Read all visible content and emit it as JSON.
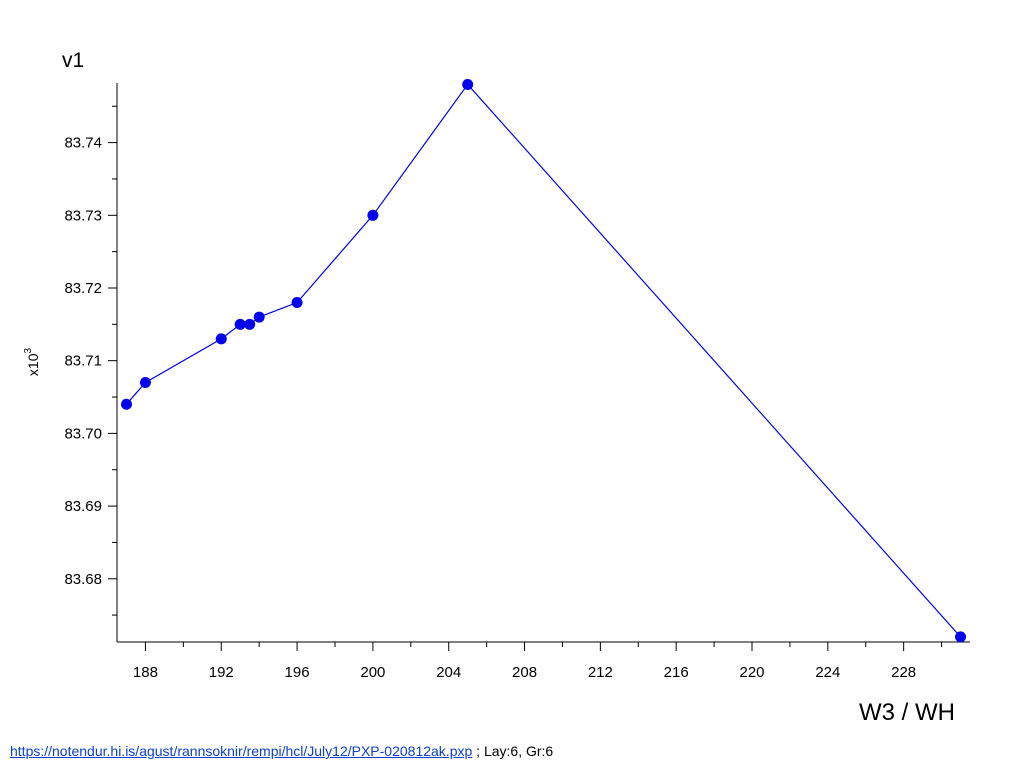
{
  "chart_data": {
    "type": "line",
    "title": "v1",
    "xlabel": "W3 / WH",
    "ylabel": "",
    "y_multiplier_base": "x10",
    "y_multiplier_exp": "3",
    "xlim": [
      186.5,
      231.5
    ],
    "ylim": [
      83.6713,
      83.7482
    ],
    "x_ticks": [
      188,
      192,
      196,
      200,
      204,
      208,
      212,
      216,
      220,
      224,
      228
    ],
    "y_ticks": [
      83.68,
      83.69,
      83.7,
      83.71,
      83.72,
      83.73,
      83.74
    ],
    "y_tick_labels": [
      "83.68",
      "83.69",
      "83.70",
      "83.71",
      "83.72",
      "83.73",
      "83.74"
    ],
    "series": [
      {
        "color": "#0000ee",
        "marker": "circle",
        "x": [
          187,
          188,
          192,
          193,
          193.5,
          194,
          196,
          200,
          205,
          231
        ],
        "y": [
          83.704,
          83.707,
          83.713,
          83.715,
          83.715,
          83.716,
          83.718,
          83.73,
          83.748,
          83.672
        ]
      }
    ],
    "grid": false,
    "legend": "none"
  },
  "footer": {
    "link_text": "https://notendur.hi.is/agust/rannsoknir/rempi/hcl/July12/PXP-020812ak.pxp",
    "suffix": " ; Lay:6, Gr:6"
  }
}
